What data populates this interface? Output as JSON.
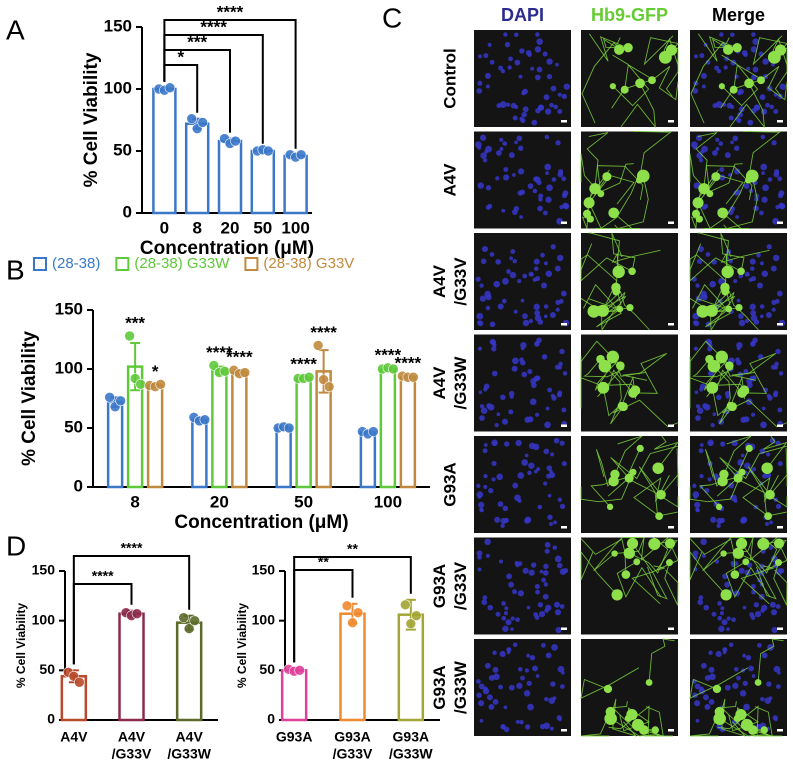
{
  "panel_labels": [
    "A",
    "B",
    "C",
    "D"
  ],
  "chart_data": [
    {
      "type": "bar",
      "xlabel": "Concentration (μM)",
      "ylabel": "% Cell Viability",
      "categories": [
        "0",
        "8",
        "20",
        "50",
        "100"
      ],
      "values": [
        100,
        72,
        58,
        50,
        46
      ],
      "errors": [
        1,
        4,
        2,
        1,
        1
      ],
      "replicates": [
        [
          100,
          99,
          101
        ],
        [
          76,
          68,
          73
        ],
        [
          60,
          56,
          58
        ],
        [
          50,
          51,
          50
        ],
        [
          47,
          45,
          47
        ]
      ],
      "color": "#3b78c9",
      "brackets": [
        null,
        "*",
        "***",
        "****",
        "****"
      ],
      "ylim": [
        0,
        150
      ],
      "yticks": [
        0,
        50,
        100,
        150
      ]
    },
    {
      "type": "bar",
      "xlabel": "Concentration (μM)",
      "ylabel": "% Cell Viability",
      "legend": "top",
      "categories": [
        "8",
        "20",
        "50",
        "100"
      ],
      "series": [
        {
          "name": "(28-38)",
          "color": "#3b78c9",
          "values": [
            72,
            57,
            50,
            46
          ],
          "errors": [
            4,
            2,
            1,
            1
          ],
          "replicates": [
            [
              76,
              68,
              73
            ],
            [
              59,
              56,
              57
            ],
            [
              50,
              51,
              50
            ],
            [
              47,
              45,
              47
            ]
          ]
        },
        {
          "name": "(28-38) G33W",
          "color": "#5fc93a",
          "values": [
            102,
            99,
            92,
            100
          ],
          "errors": [
            20,
            3,
            1,
            1
          ],
          "replicates": [
            [
              128,
              92,
              87
            ],
            [
              103,
              97,
              98
            ],
            [
              92,
              92,
              93
            ],
            [
              100,
              101,
              100
            ]
          ],
          "annotations": [
            "***",
            "****",
            "****",
            "****"
          ]
        },
        {
          "name": "(28-38) G33V",
          "color": "#c08a3e",
          "values": [
            86,
            97,
            98,
            93
          ],
          "errors": [
            1,
            2,
            18,
            1
          ],
          "replicates": [
            [
              86,
              85,
              87
            ],
            [
              99,
              96,
              97
            ],
            [
              120,
              91,
              85
            ],
            [
              94,
              93,
              93
            ]
          ],
          "annotations": [
            "*",
            "****",
            "****",
            "****"
          ]
        }
      ],
      "ylim": [
        0,
        150
      ],
      "yticks": [
        0,
        50,
        100,
        150
      ]
    },
    {
      "type": "bar",
      "ylabel": "% Cell Viability",
      "categories": [
        [
          "A4V"
        ],
        [
          "A4V",
          "/G33V"
        ],
        [
          "A4V",
          "/G33W"
        ]
      ],
      "values": [
        44,
        107,
        98
      ],
      "errors": [
        6,
        3,
        7
      ],
      "replicates": [
        [
          48,
          44,
          38
        ],
        [
          108,
          105,
          107
        ],
        [
          103,
          92,
          100
        ]
      ],
      "colors": [
        "#b8492a",
        "#8c2a4c",
        "#5c6a2a"
      ],
      "brackets": [
        null,
        "****",
        "****"
      ],
      "ylim": [
        0,
        150
      ],
      "yticks": [
        0,
        50,
        100,
        150
      ]
    },
    {
      "type": "bar",
      "ylabel": "% Cell Viability",
      "categories": [
        [
          "G93A"
        ],
        [
          "G93A",
          "/G33V"
        ],
        [
          "G93A",
          "/G33W"
        ]
      ],
      "values": [
        50,
        107,
        106
      ],
      "errors": [
        2,
        10,
        15
      ],
      "replicates": [
        [
          51,
          49,
          50
        ],
        [
          115,
          98,
          108
        ],
        [
          116,
          97,
          105
        ]
      ],
      "colors": [
        "#e0409a",
        "#f08a30",
        "#a3a634"
      ],
      "brackets": [
        null,
        "**",
        "**"
      ],
      "ylim": [
        0,
        150
      ],
      "yticks": [
        0,
        50,
        100,
        150
      ]
    }
  ],
  "image_grid": {
    "columns": [
      {
        "label": "DAPI",
        "color": "#2a2a90"
      },
      {
        "label": "Hb9-GFP",
        "color": "#66cc33"
      },
      {
        "label": "Merge",
        "color": "#000000"
      }
    ],
    "rows": [
      [
        "Control"
      ],
      [
        "A4V"
      ],
      [
        "A4V",
        "/G33V"
      ],
      [
        "A4V",
        "/G33W"
      ],
      [
        "G93A"
      ],
      [
        "G93A",
        "/G33V"
      ],
      [
        "G93A",
        "/G33W"
      ]
    ]
  }
}
